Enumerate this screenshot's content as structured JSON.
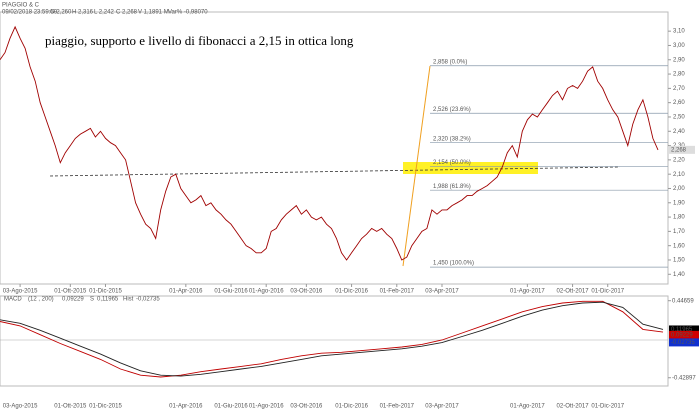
{
  "header": {
    "symbol": "PIAGGIO & C",
    "date": "09/02/2018 23:59:59",
    "open": "O 2,260",
    "high": "H 2,316",
    "low": "L 2,242",
    "close": "C 2,268",
    "volume": "V 1,1891 M",
    "change": "Var% -0,98070"
  },
  "chart_data": [
    {
      "type": "line",
      "annotation": "piaggio, supporto e livello di fibonacci a 2,15 in ottica long",
      "color": "#a00000",
      "last_label": "2,268",
      "values": [
        2.9,
        2.95,
        3.05,
        3.13,
        3.05,
        2.98,
        2.85,
        2.75,
        2.6,
        2.5,
        2.4,
        2.3,
        2.18,
        2.25,
        2.3,
        2.35,
        2.38,
        2.4,
        2.42,
        2.36,
        2.4,
        2.35,
        2.32,
        2.3,
        2.25,
        2.2,
        2.05,
        1.9,
        1.82,
        1.75,
        1.72,
        1.65,
        1.85,
        1.98,
        2.08,
        2.1,
        2.0,
        1.95,
        1.9,
        1.92,
        1.95,
        1.88,
        1.9,
        1.85,
        1.82,
        1.78,
        1.75,
        1.7,
        1.65,
        1.6,
        1.58,
        1.55,
        1.55,
        1.58,
        1.7,
        1.72,
        1.78,
        1.82,
        1.85,
        1.88,
        1.82,
        1.85,
        1.8,
        1.78,
        1.8,
        1.75,
        1.72,
        1.65,
        1.55,
        1.5,
        1.55,
        1.6,
        1.65,
        1.68,
        1.72,
        1.7,
        1.72,
        1.68,
        1.65,
        1.58,
        1.5,
        1.52,
        1.6,
        1.65,
        1.7,
        1.72,
        1.85,
        1.82,
        1.85,
        1.85,
        1.88,
        1.9,
        1.92,
        1.95,
        1.95,
        1.98,
        2.0,
        2.02,
        2.05,
        2.08,
        2.15,
        2.25,
        2.3,
        2.22,
        2.4,
        2.48,
        2.52,
        2.5,
        2.55,
        2.6,
        2.65,
        2.68,
        2.62,
        2.7,
        2.72,
        2.7,
        2.75,
        2.82,
        2.85,
        2.75,
        2.7,
        2.62,
        2.55,
        2.5,
        2.4,
        2.3,
        2.45,
        2.55,
        2.62,
        2.5,
        2.35,
        2.27
      ],
      "xlim": [
        0,
        133
      ],
      "ylim": [
        1.36,
        3.22
      ],
      "yticks": [
        {
          "value": 1.4,
          "label": "1,40"
        },
        {
          "value": 1.5,
          "label": "1,50"
        },
        {
          "value": 1.6,
          "label": "1,60"
        },
        {
          "value": 1.7,
          "label": "1,70"
        },
        {
          "value": 1.8,
          "label": "1,80"
        },
        {
          "value": 1.9,
          "label": "1,90"
        },
        {
          "value": 2.0,
          "label": "2,00"
        },
        {
          "value": 2.1,
          "label": "2,10"
        },
        {
          "value": 2.2,
          "label": "2,20"
        },
        {
          "value": 2.3,
          "label": "2,30"
        },
        {
          "value": 2.4,
          "label": "2,40"
        },
        {
          "value": 2.5,
          "label": "2,50"
        },
        {
          "value": 2.6,
          "label": "2,60"
        },
        {
          "value": 2.7,
          "label": "2,70"
        },
        {
          "value": 2.8,
          "label": "2,80"
        },
        {
          "value": 2.9,
          "label": "2,90"
        },
        {
          "value": 3.0,
          "label": "3,00"
        },
        {
          "value": 3.1,
          "label": "3,10"
        }
      ],
      "xticks": [
        {
          "value": 4,
          "label": "03-Ago-2015"
        },
        {
          "value": 14,
          "label": "01-Ott-2015"
        },
        {
          "value": 21,
          "label": "01-Dic-2015"
        },
        {
          "value": 37,
          "label": "01-Apr-2016"
        },
        {
          "value": 46,
          "label": "01-Giu-2016"
        },
        {
          "value": 53,
          "label": "01-Ago-2016"
        },
        {
          "value": 61,
          "label": "03-Ott-2016"
        },
        {
          "value": 70,
          "label": "01-Dic-2016"
        },
        {
          "value": 79,
          "label": "01-Feb-2017"
        },
        {
          "value": 88,
          "label": "03-Apr-2017"
        },
        {
          "value": 105,
          "label": "01-Ago-2017"
        },
        {
          "value": 114,
          "label": "02-Ott-2017"
        },
        {
          "value": 121,
          "label": "01-Dic-2017"
        }
      ],
      "fib_levels": [
        {
          "value": 2.858,
          "label": "2,858 (0.0%)"
        },
        {
          "value": 2.526,
          "label": "2,526 (23.6%)"
        },
        {
          "value": 2.32,
          "label": "2,320 (38.2%)"
        },
        {
          "value": 2.154,
          "label": "2,154 (50.0%)"
        },
        {
          "value": 1.988,
          "label": "1,988 (61.8%)"
        },
        {
          "value": 1.45,
          "label": "1,450 (100.0%)"
        }
      ]
    },
    {
      "type": "line",
      "title": "MACD",
      "params": "(12 , 200)",
      "macd_text": "0,09229",
      "signal_prefix": "S",
      "signal_text": "0,11965",
      "hist_prefix": "Hist",
      "hist_text": "-0,02735",
      "x": [
        0,
        4,
        8,
        12,
        16,
        20,
        24,
        28,
        32,
        36,
        40,
        44,
        48,
        52,
        56,
        60,
        64,
        68,
        72,
        76,
        80,
        84,
        88,
        92,
        96,
        100,
        104,
        108,
        112,
        116,
        120,
        124,
        128,
        132
      ],
      "series": [
        {
          "color": "#c00000",
          "values": [
            0.21,
            0.16,
            0.06,
            -0.04,
            -0.13,
            -0.22,
            -0.33,
            -0.4,
            -0.42,
            -0.4,
            -0.36,
            -0.33,
            -0.3,
            -0.27,
            -0.22,
            -0.18,
            -0.15,
            -0.14,
            -0.12,
            -0.1,
            -0.08,
            -0.05,
            0.0,
            0.08,
            0.16,
            0.24,
            0.32,
            0.38,
            0.42,
            0.44,
            0.44,
            0.32,
            0.12,
            0.09
          ]
        },
        {
          "color": "#222222",
          "values": [
            0.23,
            0.19,
            0.11,
            0.02,
            -0.07,
            -0.16,
            -0.26,
            -0.35,
            -0.4,
            -0.41,
            -0.39,
            -0.36,
            -0.33,
            -0.3,
            -0.26,
            -0.22,
            -0.18,
            -0.16,
            -0.14,
            -0.12,
            -0.1,
            -0.07,
            -0.03,
            0.04,
            0.11,
            0.19,
            0.27,
            0.34,
            0.39,
            0.42,
            0.43,
            0.37,
            0.18,
            0.12
          ]
        }
      ],
      "xlim": [
        0,
        133
      ],
      "ylim": [
        -0.5,
        0.5
      ],
      "yticks": [
        {
          "value": 0.44659,
          "label": "0.44659"
        },
        {
          "value": -0.42897,
          "label": "-0.42897"
        }
      ],
      "right_labels": [
        {
          "value": 0.11965,
          "label": "0.11965",
          "color": "#000000"
        },
        {
          "value": 0.09229,
          "label": "0.09229",
          "color": "#d00000"
        },
        {
          "value": -0.02735,
          "label": "-0.02735",
          "color": "#1030d0"
        }
      ]
    }
  ]
}
